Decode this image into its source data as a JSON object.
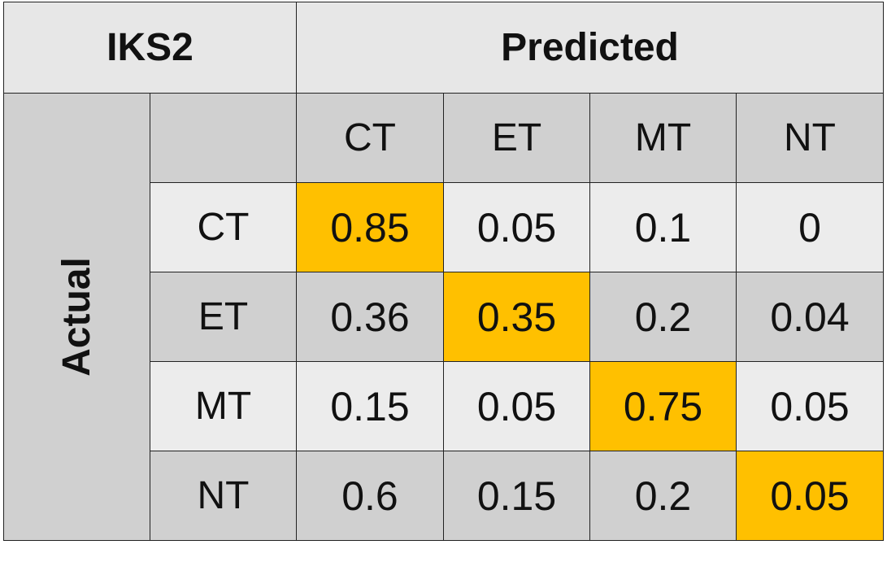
{
  "chart_data": {
    "type": "table",
    "title": "IKS2",
    "column_group_label": "Predicted",
    "row_group_label": "Actual",
    "columns": [
      "CT",
      "ET",
      "MT",
      "NT"
    ],
    "rows": [
      "CT",
      "ET",
      "MT",
      "NT"
    ],
    "values": [
      [
        "0.85",
        "0.05",
        "0.1",
        "0"
      ],
      [
        "0.36",
        "0.35",
        "0.2",
        "0.04"
      ],
      [
        "0.15",
        "0.05",
        "0.75",
        "0.05"
      ],
      [
        "0.6",
        "0.15",
        "0.2",
        "0.05"
      ]
    ],
    "highlight": "diagonal",
    "colors": {
      "highlight": "#ffc000",
      "header": "#e7e7e7",
      "dark_band": "#d0d0d0",
      "light_band": "#ececec",
      "border": "#222222"
    }
  }
}
